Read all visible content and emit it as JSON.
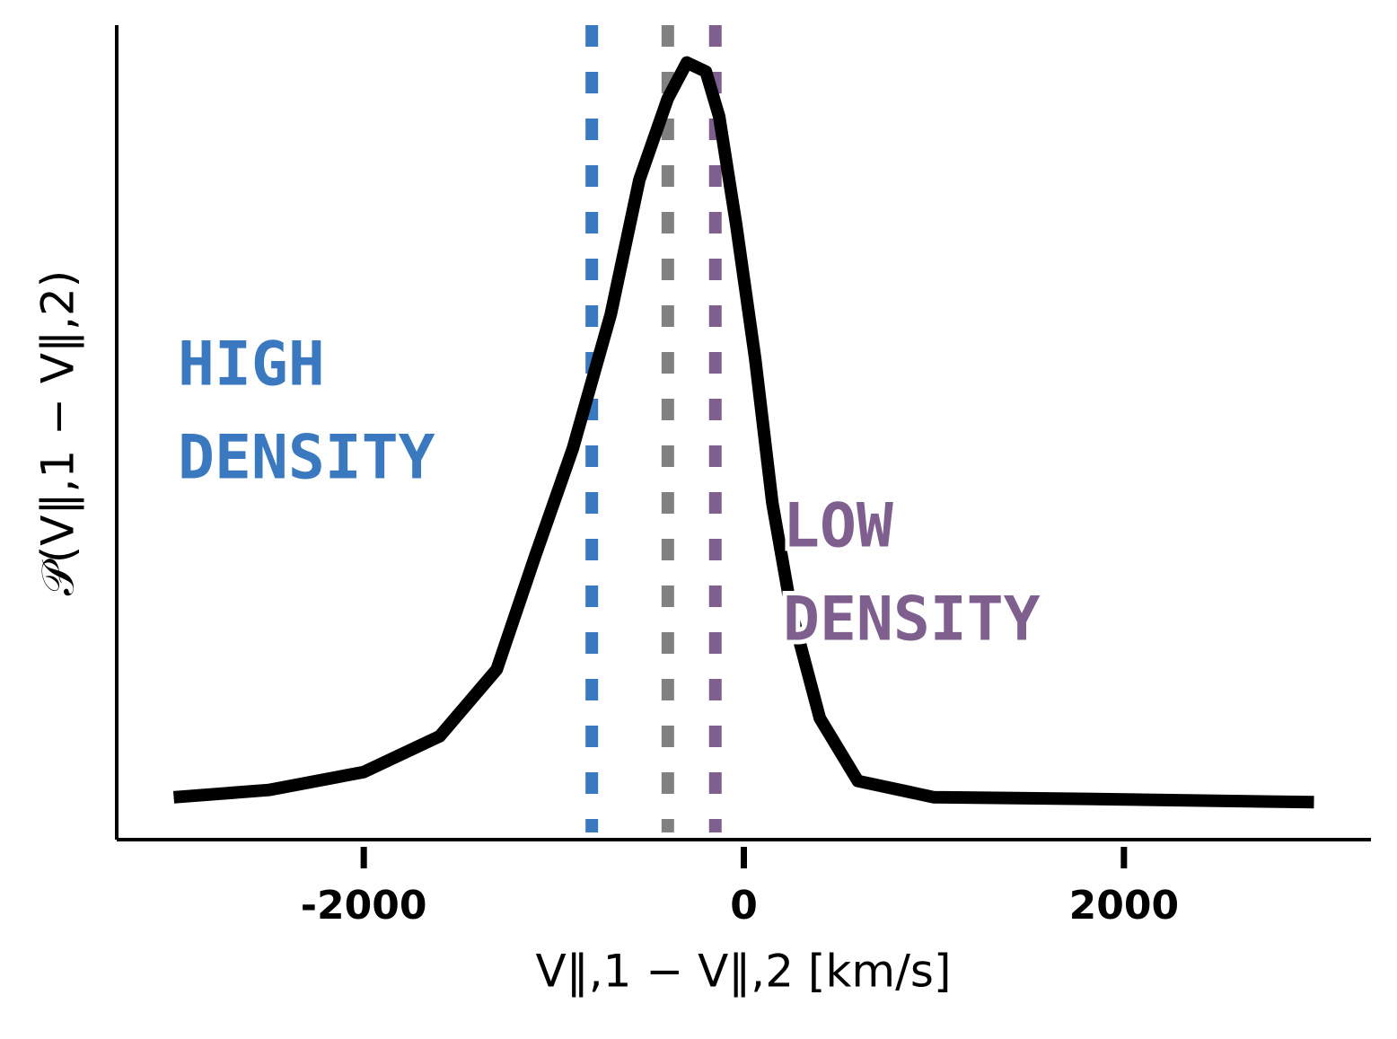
{
  "chart_data": {
    "type": "line",
    "xlabel": "V‖,1 − V‖,2 [km/s]",
    "ylabel": "𝒫(V‖,1 − V‖,2)",
    "x": [
      -3000,
      -2500,
      -2000,
      -1600,
      -1300,
      -1100,
      -900,
      -700,
      -550,
      -400,
      -300,
      -200,
      -130,
      -40,
      60,
      150,
      250,
      400,
      600,
      1000,
      1800,
      3000
    ],
    "series": [
      {
        "color": "#000000",
        "values": [
          0.052,
          0.061,
          0.083,
          0.127,
          0.209,
          0.347,
          0.48,
          0.645,
          0.81,
          0.91,
          0.954,
          0.943,
          0.888,
          0.755,
          0.59,
          0.413,
          0.281,
          0.149,
          0.072,
          0.052,
          0.05,
          0.046
        ]
      }
    ],
    "vlines": [
      {
        "x": -800,
        "color": "#3a78c0"
      },
      {
        "x": -400,
        "color": "#808080"
      },
      {
        "x": -150,
        "color": "#7e5f8e"
      }
    ],
    "annotations": [
      {
        "lines": [
          "HIGH",
          "DENSITY"
        ],
        "color": "#3a78c0"
      },
      {
        "lines": [
          "LOW",
          "DENSITY"
        ],
        "color": "#7e5f8e"
      }
    ],
    "xlim": [
      -3300,
      3300
    ],
    "xticks": [
      -2000,
      0,
      2000
    ],
    "ylim": [
      0,
      1
    ]
  }
}
